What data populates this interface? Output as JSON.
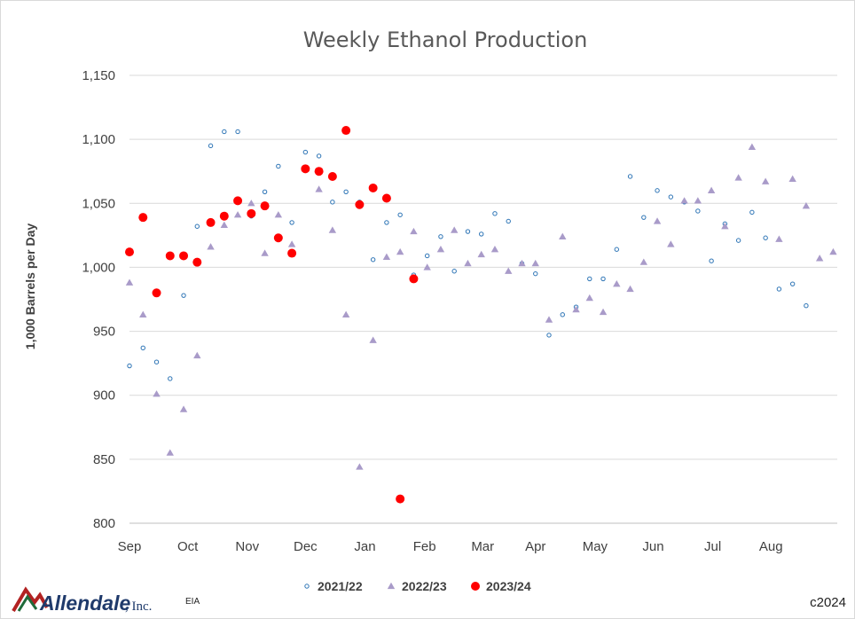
{
  "chart_data": {
    "type": "scatter",
    "title": "Weekly Ethanol Production",
    "ylabel": "1,000 Barrels per Day",
    "xlabel": "",
    "ylim": [
      800,
      1150
    ],
    "yticks": [
      800,
      850,
      900,
      950,
      1000,
      1050,
      1100,
      1150
    ],
    "ytick_labels": [
      "800",
      "850",
      "900",
      "950",
      "1,000",
      "1,050",
      "1,100",
      "1,150"
    ],
    "xticks": [
      0,
      4.3,
      8.7,
      13,
      17.4,
      21.8,
      26.1,
      30,
      34.4,
      38.7,
      43.1,
      47.4
    ],
    "xtick_labels": [
      "Sep",
      "Oct",
      "Nov",
      "Dec",
      "Jan",
      "Feb",
      "Mar",
      "Apr",
      "May",
      "Jun",
      "Jul",
      "Aug"
    ],
    "xlim": [
      0,
      52.3
    ],
    "grid": true,
    "legend_position": "bottom",
    "series": [
      {
        "name": "2021/22",
        "marker": "circle-open",
        "color": "#2e75b6",
        "values": [
          [
            0,
            923
          ],
          [
            1,
            937
          ],
          [
            2,
            926
          ],
          [
            3,
            913
          ],
          [
            4,
            978
          ],
          [
            5,
            1032
          ],
          [
            6,
            1095
          ],
          [
            7,
            1106
          ],
          [
            8,
            1106
          ],
          [
            9,
            1040
          ],
          [
            10,
            1059
          ],
          [
            11,
            1079
          ],
          [
            12,
            1035
          ],
          [
            13,
            1090
          ],
          [
            14,
            1087
          ],
          [
            15,
            1051
          ],
          [
            16,
            1059
          ],
          [
            17,
            1051
          ],
          [
            18,
            1006
          ],
          [
            19,
            1035
          ],
          [
            20,
            1041
          ],
          [
            21,
            994
          ],
          [
            22,
            1009
          ],
          [
            23,
            1024
          ],
          [
            24,
            997
          ],
          [
            25,
            1028
          ],
          [
            26,
            1026
          ],
          [
            27,
            1042
          ],
          [
            28,
            1036
          ],
          [
            29,
            1003
          ],
          [
            30,
            995
          ],
          [
            31,
            947
          ],
          [
            32,
            963
          ],
          [
            33,
            969
          ],
          [
            34,
            991
          ],
          [
            35,
            991
          ],
          [
            36,
            1014
          ],
          [
            37,
            1071
          ],
          [
            38,
            1039
          ],
          [
            39,
            1060
          ],
          [
            40,
            1055
          ],
          [
            41,
            1051
          ],
          [
            42,
            1044
          ],
          [
            43,
            1005
          ],
          [
            44,
            1034
          ],
          [
            45,
            1021
          ],
          [
            46,
            1043
          ],
          [
            47,
            1023
          ],
          [
            48,
            983
          ],
          [
            49,
            987
          ],
          [
            50,
            970
          ]
        ]
      },
      {
        "name": "2022/23",
        "marker": "triangle",
        "color": "#a99bc9",
        "values": [
          [
            0,
            988
          ],
          [
            1,
            963
          ],
          [
            2,
            901
          ],
          [
            3,
            855
          ],
          [
            4,
            889
          ],
          [
            5,
            931
          ],
          [
            6,
            1016
          ],
          [
            7,
            1033
          ],
          [
            8,
            1041
          ],
          [
            9,
            1050
          ],
          [
            10,
            1011
          ],
          [
            11,
            1041
          ],
          [
            12,
            1018
          ],
          [
            13,
            1077
          ],
          [
            14,
            1061
          ],
          [
            15,
            1029
          ],
          [
            16,
            963
          ],
          [
            17,
            844
          ],
          [
            18,
            943
          ],
          [
            19,
            1008
          ],
          [
            20,
            1012
          ],
          [
            21,
            1028
          ],
          [
            22,
            1000
          ],
          [
            23,
            1014
          ],
          [
            24,
            1029
          ],
          [
            25,
            1003
          ],
          [
            26,
            1010
          ],
          [
            27,
            1014
          ],
          [
            28,
            997
          ],
          [
            29,
            1003
          ],
          [
            30,
            1003
          ],
          [
            31,
            959
          ],
          [
            32,
            1024
          ],
          [
            33,
            967
          ],
          [
            34,
            976
          ],
          [
            35,
            965
          ],
          [
            36,
            987
          ],
          [
            37,
            983
          ],
          [
            38,
            1004
          ],
          [
            39,
            1036
          ],
          [
            40,
            1018
          ],
          [
            41,
            1052
          ],
          [
            42,
            1052
          ],
          [
            43,
            1060
          ],
          [
            44,
            1032
          ],
          [
            45,
            1070
          ],
          [
            46,
            1094
          ],
          [
            47,
            1067
          ],
          [
            48,
            1022
          ],
          [
            49,
            1069
          ],
          [
            50,
            1048
          ],
          [
            51,
            1007
          ],
          [
            52,
            1012
          ]
        ]
      },
      {
        "name": "2023/24",
        "marker": "circle-filled",
        "color": "#ff0000",
        "values": [
          [
            0,
            1012
          ],
          [
            1,
            1039
          ],
          [
            2,
            980
          ],
          [
            3,
            1009
          ],
          [
            4,
            1009
          ],
          [
            5,
            1004
          ],
          [
            6,
            1035
          ],
          [
            7,
            1040
          ],
          [
            8,
            1052
          ],
          [
            9,
            1042
          ],
          [
            10,
            1048
          ],
          [
            11,
            1023
          ],
          [
            12,
            1011
          ],
          [
            13,
            1077
          ],
          [
            14,
            1075
          ],
          [
            15,
            1071
          ],
          [
            16,
            1107
          ],
          [
            17,
            1049
          ],
          [
            18,
            1062
          ],
          [
            19,
            1054
          ],
          [
            20,
            819
          ],
          [
            21,
            991
          ]
        ]
      }
    ]
  },
  "footer": {
    "source": "EIA",
    "copyright": "c2024",
    "logo_name": "Allendale",
    "logo_suffix": ", Inc."
  }
}
